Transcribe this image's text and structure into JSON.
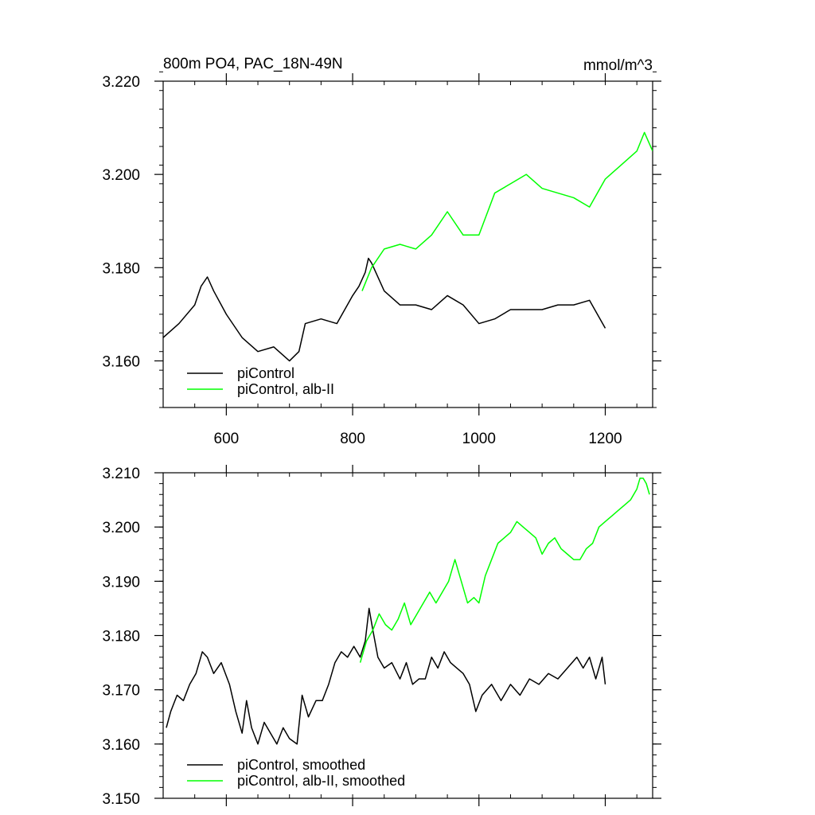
{
  "chart_data": [
    {
      "type": "line",
      "title": "800m PO4, PAC_18N-49N",
      "units": "mmol/m^3",
      "xlim": [
        500,
        1275
      ],
      "ylim": [
        3.15,
        3.22
      ],
      "x_ticks": [
        600,
        800,
        1000,
        1200
      ],
      "x_tick_labels": [
        "600",
        "800",
        "1000",
        "1200"
      ],
      "y_ticks": [
        3.16,
        3.18,
        3.2,
        3.22
      ],
      "y_tick_labels": [
        "3.160",
        "3.180",
        "3.200",
        "3.220"
      ],
      "legend_position": "bottom-left",
      "series": [
        {
          "name": "piControl",
          "color": "#000000",
          "x": [
            500,
            525,
            550,
            560,
            570,
            580,
            600,
            625,
            650,
            675,
            700,
            715,
            725,
            750,
            775,
            800,
            810,
            820,
            825,
            830,
            850,
            875,
            900,
            925,
            950,
            975,
            1000,
            1025,
            1050,
            1075,
            1100,
            1125,
            1150,
            1175,
            1200
          ],
          "values": [
            3.165,
            3.168,
            3.172,
            3.176,
            3.178,
            3.175,
            3.17,
            3.165,
            3.162,
            3.163,
            3.16,
            3.162,
            3.168,
            3.169,
            3.168,
            3.174,
            3.176,
            3.179,
            3.182,
            3.181,
            3.175,
            3.172,
            3.172,
            3.171,
            3.174,
            3.172,
            3.168,
            3.169,
            3.171,
            3.171,
            3.171,
            3.172,
            3.172,
            3.173,
            3.167
          ]
        },
        {
          "name": "piControl, alb-II",
          "color": "#00ff00",
          "x": [
            815,
            830,
            850,
            875,
            900,
            925,
            950,
            975,
            1000,
            1025,
            1050,
            1075,
            1100,
            1125,
            1150,
            1175,
            1200,
            1225,
            1250,
            1262,
            1275
          ],
          "values": [
            3.175,
            3.18,
            3.184,
            3.185,
            3.184,
            3.187,
            3.192,
            3.187,
            3.187,
            3.196,
            3.198,
            3.2,
            3.197,
            3.196,
            3.195,
            3.193,
            3.199,
            3.202,
            3.205,
            3.209,
            3.205
          ]
        }
      ]
    },
    {
      "type": "line",
      "xlim": [
        500,
        1275
      ],
      "ylim": [
        3.15,
        3.21
      ],
      "x_ticks": [
        600,
        800,
        1000,
        1200
      ],
      "y_ticks": [
        3.15,
        3.16,
        3.17,
        3.18,
        3.19,
        3.2,
        3.21
      ],
      "y_tick_labels": [
        "3.150",
        "3.160",
        "3.170",
        "3.180",
        "3.190",
        "3.200",
        "3.210"
      ],
      "legend_position": "bottom-left",
      "series": [
        {
          "name": "piControl, smoothed",
          "color": "#000000",
          "x": [
            505,
            512,
            522,
            532,
            542,
            552,
            562,
            570,
            580,
            592,
            605,
            615,
            625,
            632,
            640,
            650,
            660,
            670,
            680,
            690,
            700,
            712,
            720,
            730,
            742,
            752,
            762,
            772,
            782,
            792,
            802,
            812,
            820,
            826,
            832,
            840,
            850,
            862,
            875,
            885,
            895,
            905,
            915,
            925,
            935,
            945,
            955,
            965,
            975,
            985,
            995,
            1005,
            1020,
            1035,
            1050,
            1065,
            1080,
            1095,
            1110,
            1125,
            1140,
            1155,
            1165,
            1175,
            1185,
            1195,
            1200
          ],
          "values": [
            3.163,
            3.166,
            3.169,
            3.168,
            3.171,
            3.173,
            3.177,
            3.176,
            3.173,
            3.175,
            3.171,
            3.166,
            3.162,
            3.168,
            3.163,
            3.16,
            3.164,
            3.162,
            3.16,
            3.163,
            3.161,
            3.16,
            3.169,
            3.165,
            3.168,
            3.168,
            3.171,
            3.175,
            3.177,
            3.176,
            3.178,
            3.176,
            3.179,
            3.185,
            3.181,
            3.176,
            3.174,
            3.175,
            3.172,
            3.175,
            3.171,
            3.172,
            3.172,
            3.176,
            3.174,
            3.177,
            3.175,
            3.174,
            3.173,
            3.171,
            3.166,
            3.169,
            3.171,
            3.168,
            3.171,
            3.169,
            3.172,
            3.171,
            3.173,
            3.172,
            3.174,
            3.176,
            3.174,
            3.176,
            3.172,
            3.176,
            3.171
          ]
        },
        {
          "name": "piControl, alb-II, smoothed",
          "color": "#00ff00",
          "x": [
            812,
            822,
            832,
            842,
            852,
            862,
            872,
            882,
            892,
            902,
            912,
            922,
            932,
            942,
            952,
            962,
            972,
            982,
            992,
            1000,
            1010,
            1020,
            1030,
            1040,
            1050,
            1060,
            1070,
            1080,
            1090,
            1100,
            1110,
            1120,
            1130,
            1140,
            1150,
            1160,
            1170,
            1180,
            1190,
            1200,
            1210,
            1220,
            1230,
            1240,
            1250,
            1255,
            1260,
            1265,
            1270
          ],
          "values": [
            3.175,
            3.179,
            3.181,
            3.184,
            3.182,
            3.181,
            3.183,
            3.186,
            3.182,
            3.184,
            3.186,
            3.188,
            3.186,
            3.188,
            3.19,
            3.194,
            3.19,
            3.186,
            3.187,
            3.186,
            3.191,
            3.194,
            3.197,
            3.198,
            3.199,
            3.201,
            3.2,
            3.199,
            3.198,
            3.195,
            3.197,
            3.198,
            3.196,
            3.195,
            3.194,
            3.194,
            3.196,
            3.197,
            3.2,
            3.201,
            3.202,
            3.203,
            3.204,
            3.205,
            3.207,
            3.209,
            3.209,
            3.208,
            3.206
          ]
        }
      ]
    }
  ]
}
